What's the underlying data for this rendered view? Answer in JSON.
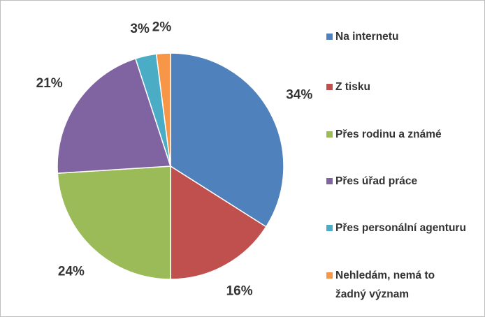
{
  "chart_data": {
    "type": "pie",
    "categories": [
      "Na internetu",
      "Z tisku",
      "Přes rodinu a známé",
      "Přes úřad práce",
      "Přes personální agenturu",
      "Nehledám, nemá to žadný význam"
    ],
    "values": [
      34,
      16,
      24,
      21,
      3,
      2
    ],
    "value_labels": [
      "34%",
      "16%",
      "24%",
      "21%",
      "3%",
      "2%"
    ],
    "colors": [
      "#4f81bd",
      "#c0504d",
      "#9bbb59",
      "#8064a2",
      "#4bacc6",
      "#f79646"
    ],
    "legend": "right"
  }
}
